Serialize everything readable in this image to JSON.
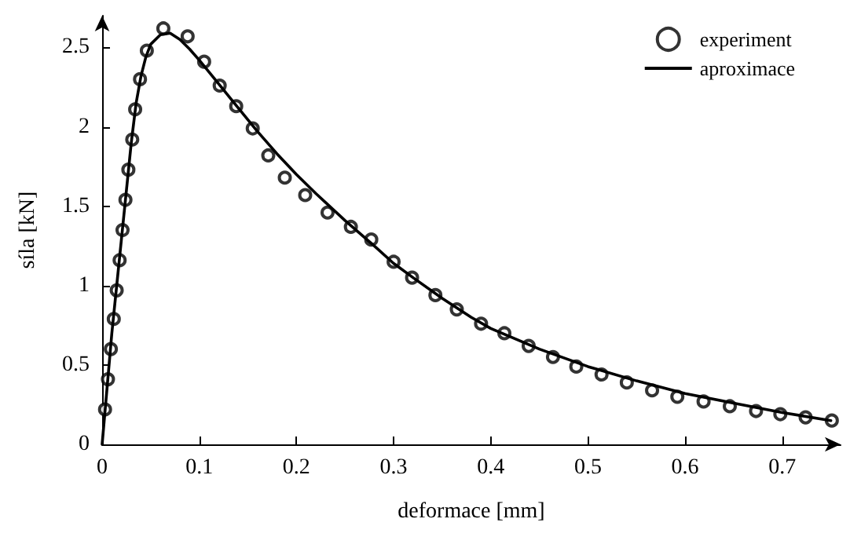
{
  "chart_data": {
    "type": "scatter",
    "xlabel": "deformace [mm]",
    "ylabel": "síla [kN]",
    "xlim": [
      0,
      0.76
    ],
    "ylim": [
      0,
      2.7
    ],
    "xticks": [
      0,
      0.1,
      0.2,
      0.3,
      0.4,
      0.5,
      0.6,
      0.7
    ],
    "yticks": [
      0,
      0.5,
      1,
      1.5,
      2,
      2.5
    ],
    "grid": false,
    "legend": "top right",
    "series": [
      {
        "name": "experiment",
        "marker": "circle",
        "color": "#000000",
        "x": [
          0.003,
          0.006,
          0.009,
          0.012,
          0.015,
          0.018,
          0.021,
          0.024,
          0.027,
          0.031,
          0.034,
          0.039,
          0.046,
          0.063,
          0.088,
          0.105,
          0.121,
          0.138,
          0.155,
          0.171,
          0.188,
          0.209,
          0.232,
          0.256,
          0.277,
          0.3,
          0.319,
          0.343,
          0.365,
          0.39,
          0.414,
          0.439,
          0.464,
          0.488,
          0.514,
          0.54,
          0.566,
          0.592,
          0.619,
          0.646,
          0.673,
          0.698,
          0.724,
          0.751
        ],
        "values": [
          0.22,
          0.41,
          0.6,
          0.79,
          0.97,
          1.16,
          1.35,
          1.54,
          1.73,
          1.92,
          2.11,
          2.3,
          2.48,
          2.62,
          2.57,
          2.41,
          2.26,
          2.13,
          1.99,
          1.82,
          1.68,
          1.57,
          1.46,
          1.37,
          1.29,
          1.15,
          1.05,
          0.94,
          0.85,
          0.76,
          0.7,
          0.62,
          0.55,
          0.49,
          0.44,
          0.39,
          0.34,
          0.3,
          0.27,
          0.24,
          0.21,
          0.19,
          0.17,
          0.15
        ]
      },
      {
        "name": "aproximace",
        "type": "line",
        "marker": "none",
        "line_style": "solid",
        "color": "#000000",
        "x": [
          0,
          0.005,
          0.01,
          0.015,
          0.02,
          0.025,
          0.03,
          0.035,
          0.04,
          0.045,
          0.05,
          0.06,
          0.07,
          0.08,
          0.09,
          0.1,
          0.12,
          0.14,
          0.16,
          0.18,
          0.2,
          0.22,
          0.25,
          0.28,
          0.3,
          0.32,
          0.35,
          0.38,
          0.4,
          0.45,
          0.5,
          0.55,
          0.6,
          0.65,
          0.7,
          0.75
        ],
        "values": [
          0,
          0.35,
          0.7,
          1.0,
          1.3,
          1.6,
          1.9,
          2.15,
          2.32,
          2.44,
          2.52,
          2.58,
          2.59,
          2.55,
          2.49,
          2.42,
          2.27,
          2.12,
          1.97,
          1.83,
          1.7,
          1.58,
          1.41,
          1.25,
          1.14,
          1.05,
          0.92,
          0.8,
          0.73,
          0.6,
          0.49,
          0.4,
          0.32,
          0.26,
          0.2,
          0.15
        ]
      }
    ]
  }
}
